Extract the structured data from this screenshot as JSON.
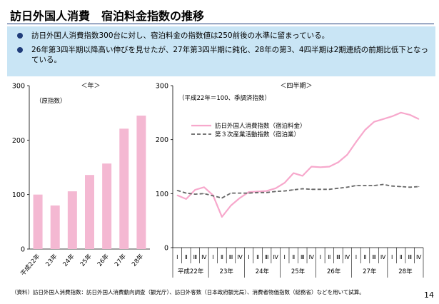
{
  "title": "訪日外国人消費　宿泊料金指数の推移",
  "bullets": [
    "訪日外国人消費指数300台に対し、宿泊料金の指数値は250前後の水準に留まっている。",
    "26年第3四半期以降高い伸びを見せたが、27年第3四半期に鈍化、28年の第3、4四半期は2期連続の前期比低下となっている。"
  ],
  "footnote": "（資料）訪日外国人消費指数：訪日外国人消費動向調査（観光庁）、訪日外客数（日本政府観光局）、消費者物価指数（総務省）などを用いて試算。",
  "page_number": "14",
  "colors": {
    "pink": "#f4b8d2",
    "line_pink": "#f7a8cc",
    "gray_dash": "#666666",
    "band": "#c9e5f5",
    "navy": "#1f3c7a"
  },
  "chart_data": [
    {
      "type": "bar",
      "title": "＜年＞",
      "note": "（原指数）",
      "categories": [
        "平成22年",
        "23年",
        "24年",
        "25年",
        "26年",
        "27年",
        "28年"
      ],
      "values": [
        100,
        80,
        106,
        136,
        157,
        221,
        245
      ],
      "ylim": [
        0,
        300
      ],
      "yticks": [
        0,
        100,
        200,
        300
      ],
      "grid": false
    },
    {
      "type": "line",
      "title": "＜四半期＞",
      "note": "（平成22年＝100、季調済指数）",
      "ylim": [
        0,
        300
      ],
      "yticks": [
        0,
        100,
        200,
        300
      ],
      "quarter_labels": [
        "Ⅰ",
        "Ⅱ",
        "Ⅲ",
        "Ⅳ",
        "Ⅰ",
        "Ⅱ",
        "Ⅲ",
        "Ⅳ",
        "Ⅰ",
        "Ⅱ",
        "Ⅲ",
        "Ⅳ",
        "Ⅰ",
        "Ⅱ",
        "Ⅲ",
        "Ⅳ",
        "Ⅰ",
        "Ⅱ",
        "Ⅲ",
        "Ⅳ",
        "Ⅰ",
        "Ⅱ",
        "Ⅲ",
        "Ⅳ",
        "Ⅰ",
        "Ⅱ",
        "Ⅲ",
        "Ⅳ"
      ],
      "year_labels": [
        "平成22年",
        "23年",
        "24年",
        "25年",
        "26年",
        "27年",
        "28年"
      ],
      "legend_position": "top-left",
      "series": [
        {
          "name": "訪日外国人消費指数（宿泊料金）",
          "style": "solid",
          "values": [
            97,
            90,
            107,
            112,
            97,
            57,
            78,
            92,
            103,
            104,
            105,
            110,
            120,
            138,
            133,
            150,
            149,
            150,
            158,
            172,
            196,
            218,
            233,
            238,
            243,
            250,
            246,
            238
          ]
        },
        {
          "name": "第３次産業活動指数（宿泊業）",
          "style": "dashed",
          "values": [
            106,
            101,
            99,
            100,
            96,
            92,
            101,
            101,
            101,
            102,
            102,
            104,
            105,
            107,
            109,
            108,
            108,
            108,
            110,
            112,
            115,
            115,
            115,
            117,
            114,
            113,
            112,
            113
          ]
        }
      ]
    }
  ]
}
